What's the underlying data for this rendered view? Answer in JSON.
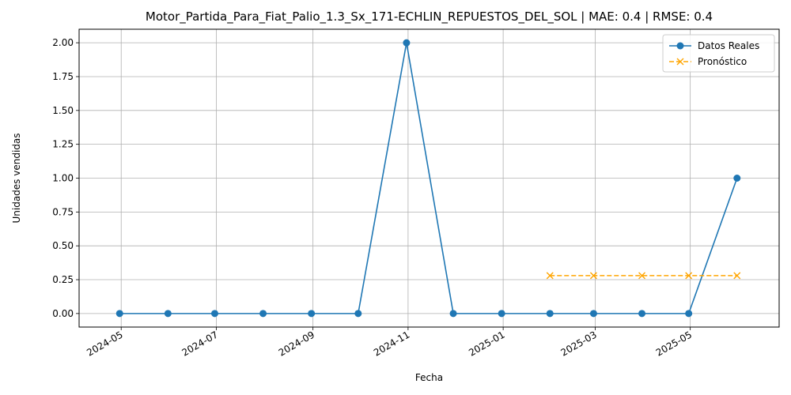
{
  "chart_data": {
    "type": "line",
    "title": "Motor_Partida_Para_Fiat_Palio_1.3_Sx_171-ECHLIN_REPUESTOS_DEL_SOL | MAE: 0.4 | RMSE: 0.4",
    "xlabel": "Fecha",
    "ylabel": "Unidades vendidas",
    "ylim": [
      -0.1,
      2.1
    ],
    "yticks": [
      0.0,
      0.25,
      0.5,
      0.75,
      1.0,
      1.25,
      1.5,
      1.75,
      2.0
    ],
    "ytick_labels": [
      "0.00",
      "0.25",
      "0.50",
      "0.75",
      "1.00",
      "1.25",
      "1.50",
      "1.75",
      "2.00"
    ],
    "xticks": [
      "2024-05-01",
      "2024-07-01",
      "2024-09-01",
      "2024-11-01",
      "2025-01-01",
      "2025-03-01",
      "2025-05-01"
    ],
    "xtick_labels": [
      "2024-05",
      "2024-07",
      "2024-09",
      "2024-11",
      "2025-01",
      "2025-03",
      "2025-05"
    ],
    "xlim": [
      "2024-04-04",
      "2025-06-27"
    ],
    "grid": true,
    "legend_position": "top-right",
    "series": [
      {
        "name": "Datos Reales",
        "color": "#1f77b4",
        "marker": "circle",
        "linestyle": "solid",
        "x": [
          "2024-04-30",
          "2024-05-31",
          "2024-06-30",
          "2024-07-31",
          "2024-08-31",
          "2024-09-30",
          "2024-10-31",
          "2024-11-30",
          "2024-12-31",
          "2025-01-31",
          "2025-02-28",
          "2025-03-31",
          "2025-04-30",
          "2025-05-31"
        ],
        "values": [
          0,
          0,
          0,
          0,
          0,
          0,
          2,
          0,
          0,
          0,
          0,
          0,
          0,
          1
        ]
      },
      {
        "name": "Pronóstico",
        "color": "#ffa500",
        "marker": "x",
        "linestyle": "dashed",
        "x": [
          "2025-01-31",
          "2025-02-28",
          "2025-03-31",
          "2025-04-30",
          "2025-05-31"
        ],
        "values": [
          0.28,
          0.28,
          0.28,
          0.28,
          0.28
        ]
      }
    ]
  }
}
